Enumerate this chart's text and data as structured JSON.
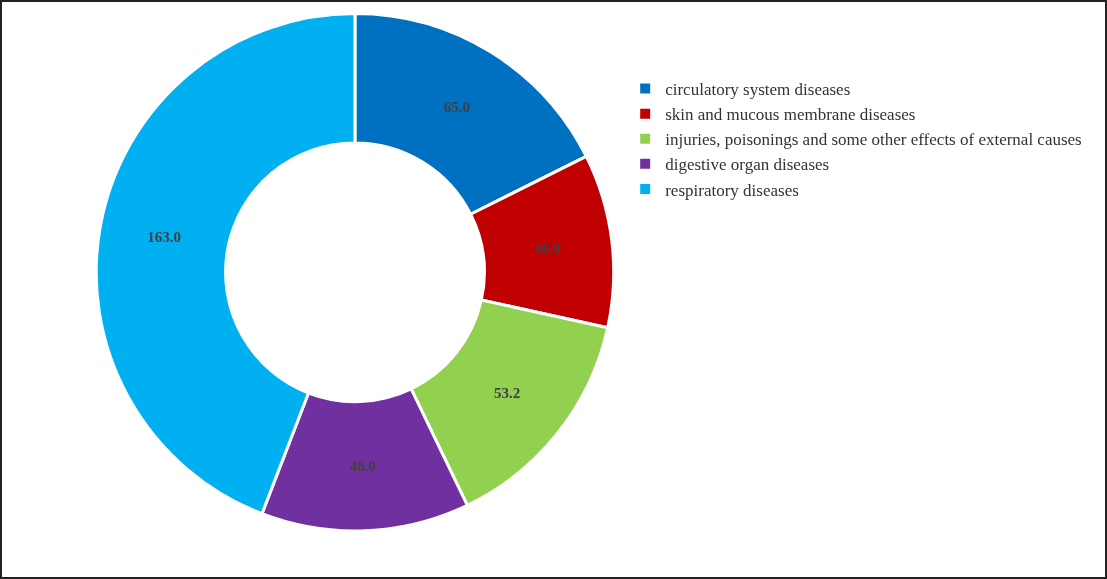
{
  "chart_data": {
    "type": "donut",
    "categories": [
      "circulatory system diseases",
      "skin and mucous membrane diseases",
      "injuries, poisonings and some other effects of external causes",
      "digestive organ diseases",
      "respiratory diseases"
    ],
    "values": [
      65.0,
      40.0,
      53.2,
      48.0,
      163.0
    ],
    "value_labels": [
      "65.0",
      "40.0",
      "53.2",
      "48.0",
      "163.0"
    ],
    "colors": [
      "#0070c0",
      "#c00000",
      "#92d050",
      "#7030a0",
      "#00b0f0"
    ],
    "legend": "right"
  }
}
